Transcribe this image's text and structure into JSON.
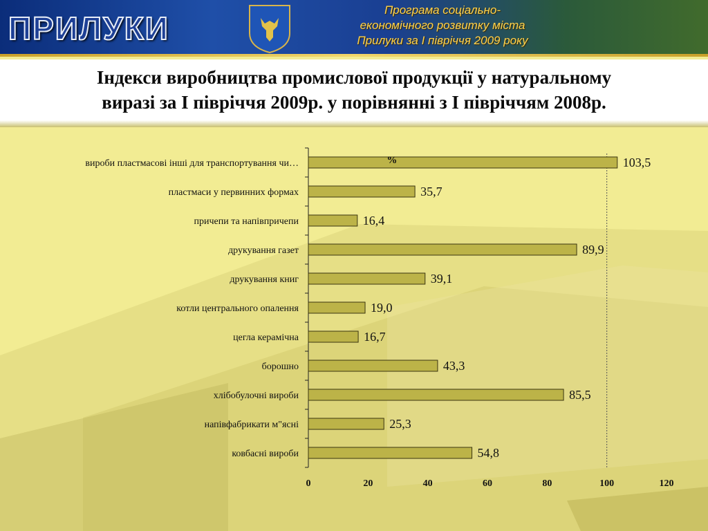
{
  "header": {
    "city_name": "ПРИЛУКИ",
    "subtitle_lines": [
      "Програма соціально-",
      "економічного розвитку міста",
      "Прилуки за І  півріччя 2009 року"
    ]
  },
  "slide_title_lines": [
    "Індекси виробництва промислової продукції у натуральному",
    "виразі за І півріччя 2009р. у порівнянні з І півріччям 2008р."
  ],
  "chart_data": {
    "type": "bar",
    "orientation": "horizontal",
    "unit_label": "%",
    "categories": [
      "вироби пластмасові інші для транспортування чи…",
      "пластмаси у первинних формах",
      "причепи та напівпричепи",
      "друкування газет",
      "друкування книг",
      "котли центрального опалення",
      "цегла керамічна",
      "борошно",
      "хлібобулочні вироби",
      "напівфабрикати м\"ясні",
      "ковбасні вироби"
    ],
    "values": [
      103.5,
      35.7,
      16.4,
      89.9,
      39.1,
      19.0,
      16.7,
      43.3,
      85.5,
      25.3,
      54.8
    ],
    "value_labels": [
      "103,5",
      "35,7",
      "16,4",
      "89,9",
      "39,1",
      "19,0",
      "16,7",
      "43,3",
      "85,5",
      "25,3",
      "54,8"
    ],
    "xlim": [
      0,
      120
    ],
    "x_ticks": [
      0,
      20,
      40,
      60,
      80,
      100,
      120
    ],
    "reference_line": 100,
    "bar_color": "#bcb348",
    "bar_edge_color": "#3a3410",
    "grid": false
  }
}
